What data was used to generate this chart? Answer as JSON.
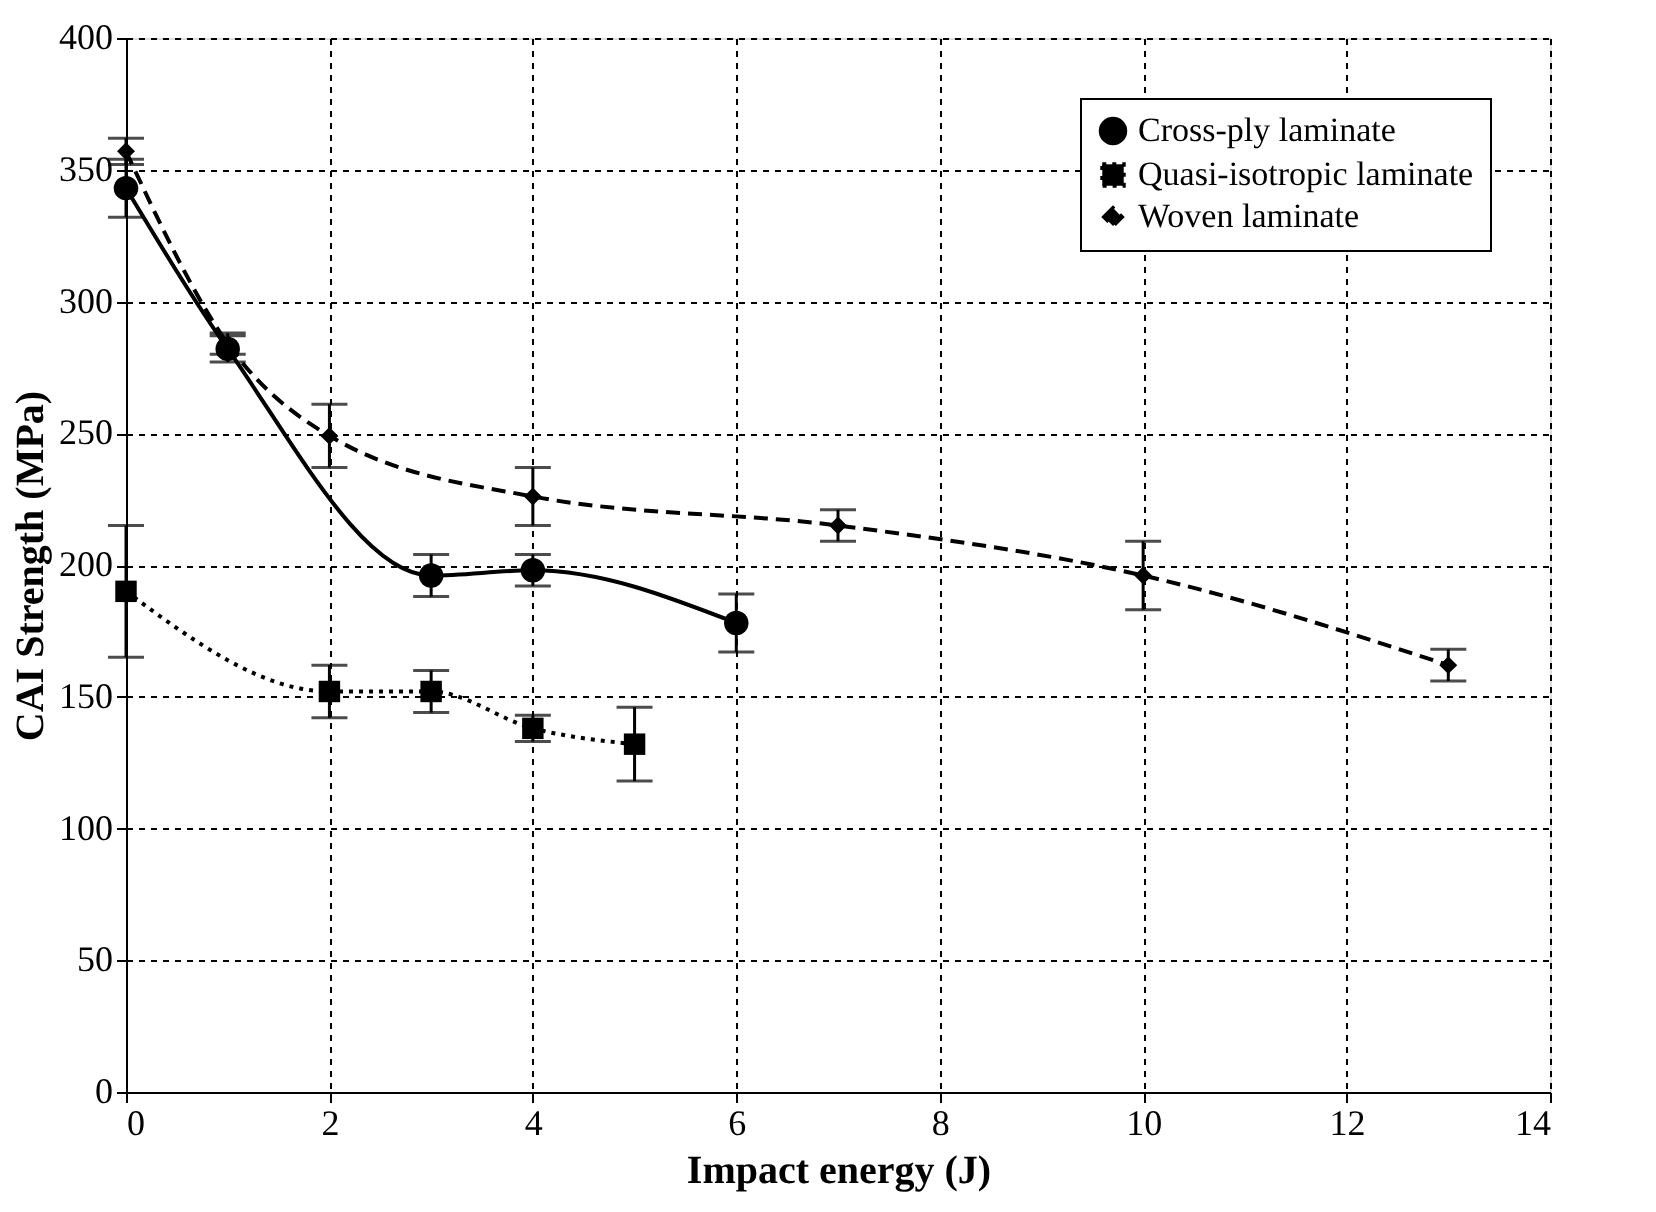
{
  "chart_data": {
    "type": "line",
    "xlabel": "Impact energy (J)",
    "ylabel": "CAI Strength (MPa)",
    "xlim": [
      0,
      14
    ],
    "xticks": [
      0,
      2,
      4,
      6,
      8,
      10,
      12,
      14
    ],
    "ylim": [
      0,
      400
    ],
    "yticks": [
      0,
      50,
      100,
      150,
      200,
      250,
      300,
      350,
      400
    ],
    "grid": true,
    "legend": "top right",
    "series": [
      {
        "name": "Cross-ply laminate",
        "color": "#000000",
        "marker": "circle",
        "line_style": "solid",
        "x": [
          0,
          1,
          3,
          4,
          6
        ],
        "values": [
          343,
          282,
          196,
          198,
          178
        ],
        "errors": [
          11,
          5,
          8,
          6,
          11
        ]
      },
      {
        "name": "Quasi-isotropic laminate",
        "color": "#000000",
        "marker": "square",
        "line_style": "dotted",
        "x": [
          0,
          2,
          3,
          4,
          5
        ],
        "values": [
          190,
          152,
          152,
          138,
          132
        ],
        "errors": [
          25,
          10,
          8,
          5,
          14
        ]
      },
      {
        "name": "Woven laminate",
        "color": "#000000",
        "marker": "diamond",
        "line_style": "dashed",
        "x": [
          0,
          1,
          2,
          4,
          7,
          10,
          13
        ],
        "values": [
          357,
          284,
          249,
          226,
          215,
          196,
          162
        ],
        "errors": [
          5,
          4,
          12,
          11,
          6,
          13,
          6
        ]
      }
    ]
  }
}
